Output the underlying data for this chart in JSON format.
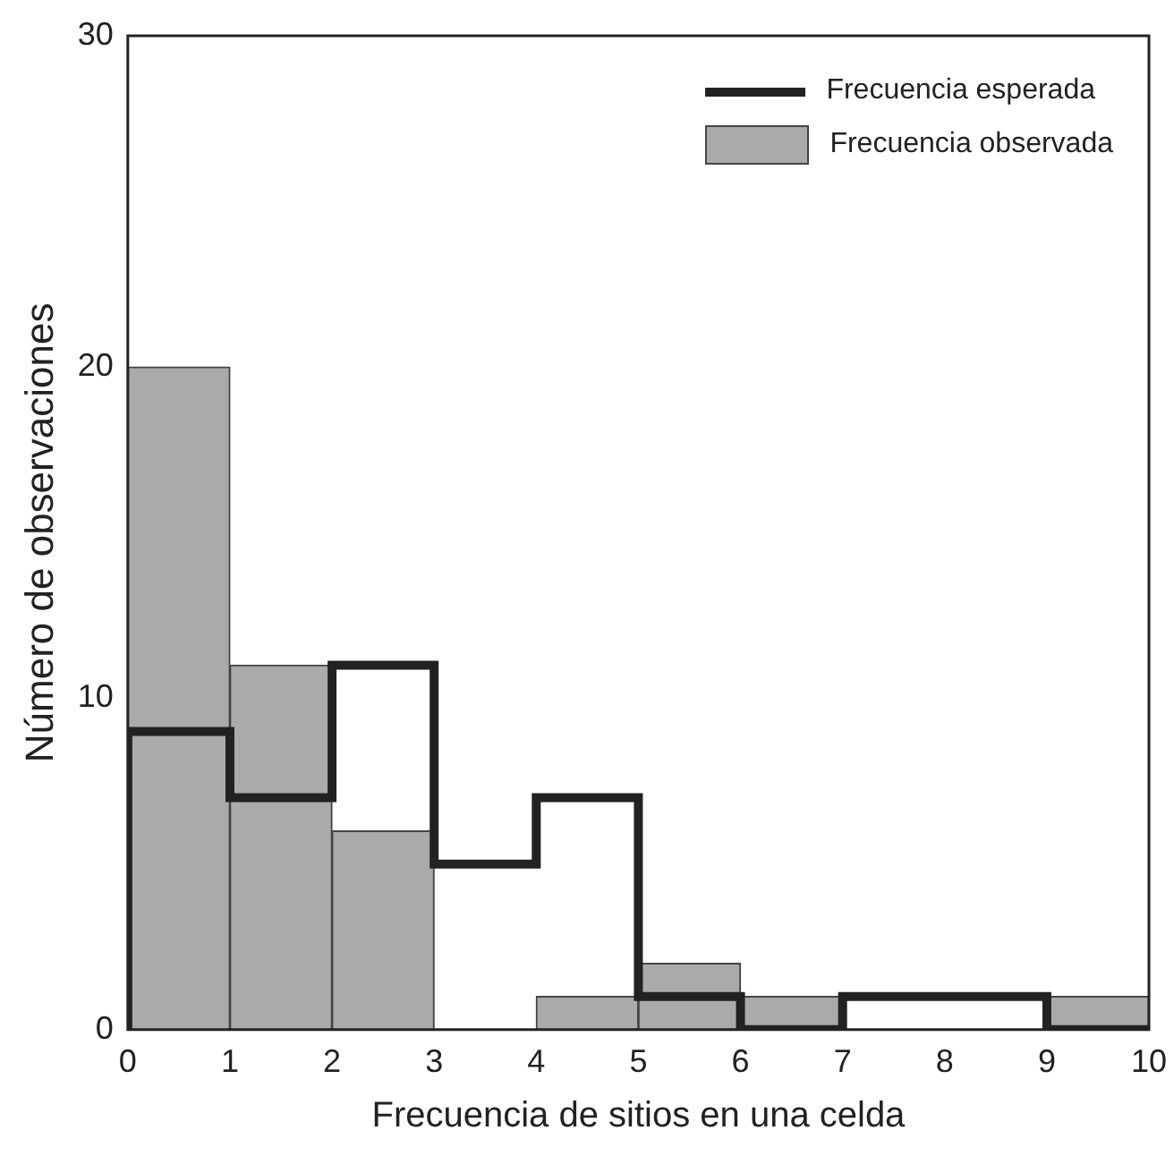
{
  "chart_data": {
    "type": "histogram",
    "xlabel": "Frecuencia de sitios en una celda",
    "ylabel": "Número de observaciones",
    "bins": [
      0,
      1,
      2,
      3,
      4,
      5,
      6,
      7,
      8,
      9,
      10
    ],
    "series": [
      {
        "name": "Frecuencia esperada",
        "type": "step",
        "color": "#222222",
        "x": [
          0,
          0,
          1,
          2,
          3,
          4,
          5,
          6,
          7,
          8,
          9,
          10
        ],
        "values": [
          0,
          9,
          7,
          11,
          5,
          7,
          1,
          0,
          1,
          1,
          0,
          0
        ]
      },
      {
        "name": "Frecuencia observada",
        "color": "#aaaaaa",
        "values": [
          20,
          11,
          6,
          0,
          1,
          2,
          1,
          0,
          0,
          1
        ]
      }
    ],
    "xlim": [
      0,
      10
    ],
    "xticks": [
      0,
      1,
      2,
      3,
      4,
      5,
      6,
      7,
      8,
      9,
      10
    ],
    "ylim": [
      0,
      30
    ],
    "yticks": [
      0,
      10,
      20,
      30
    ],
    "grid": false,
    "legend": "top right"
  }
}
